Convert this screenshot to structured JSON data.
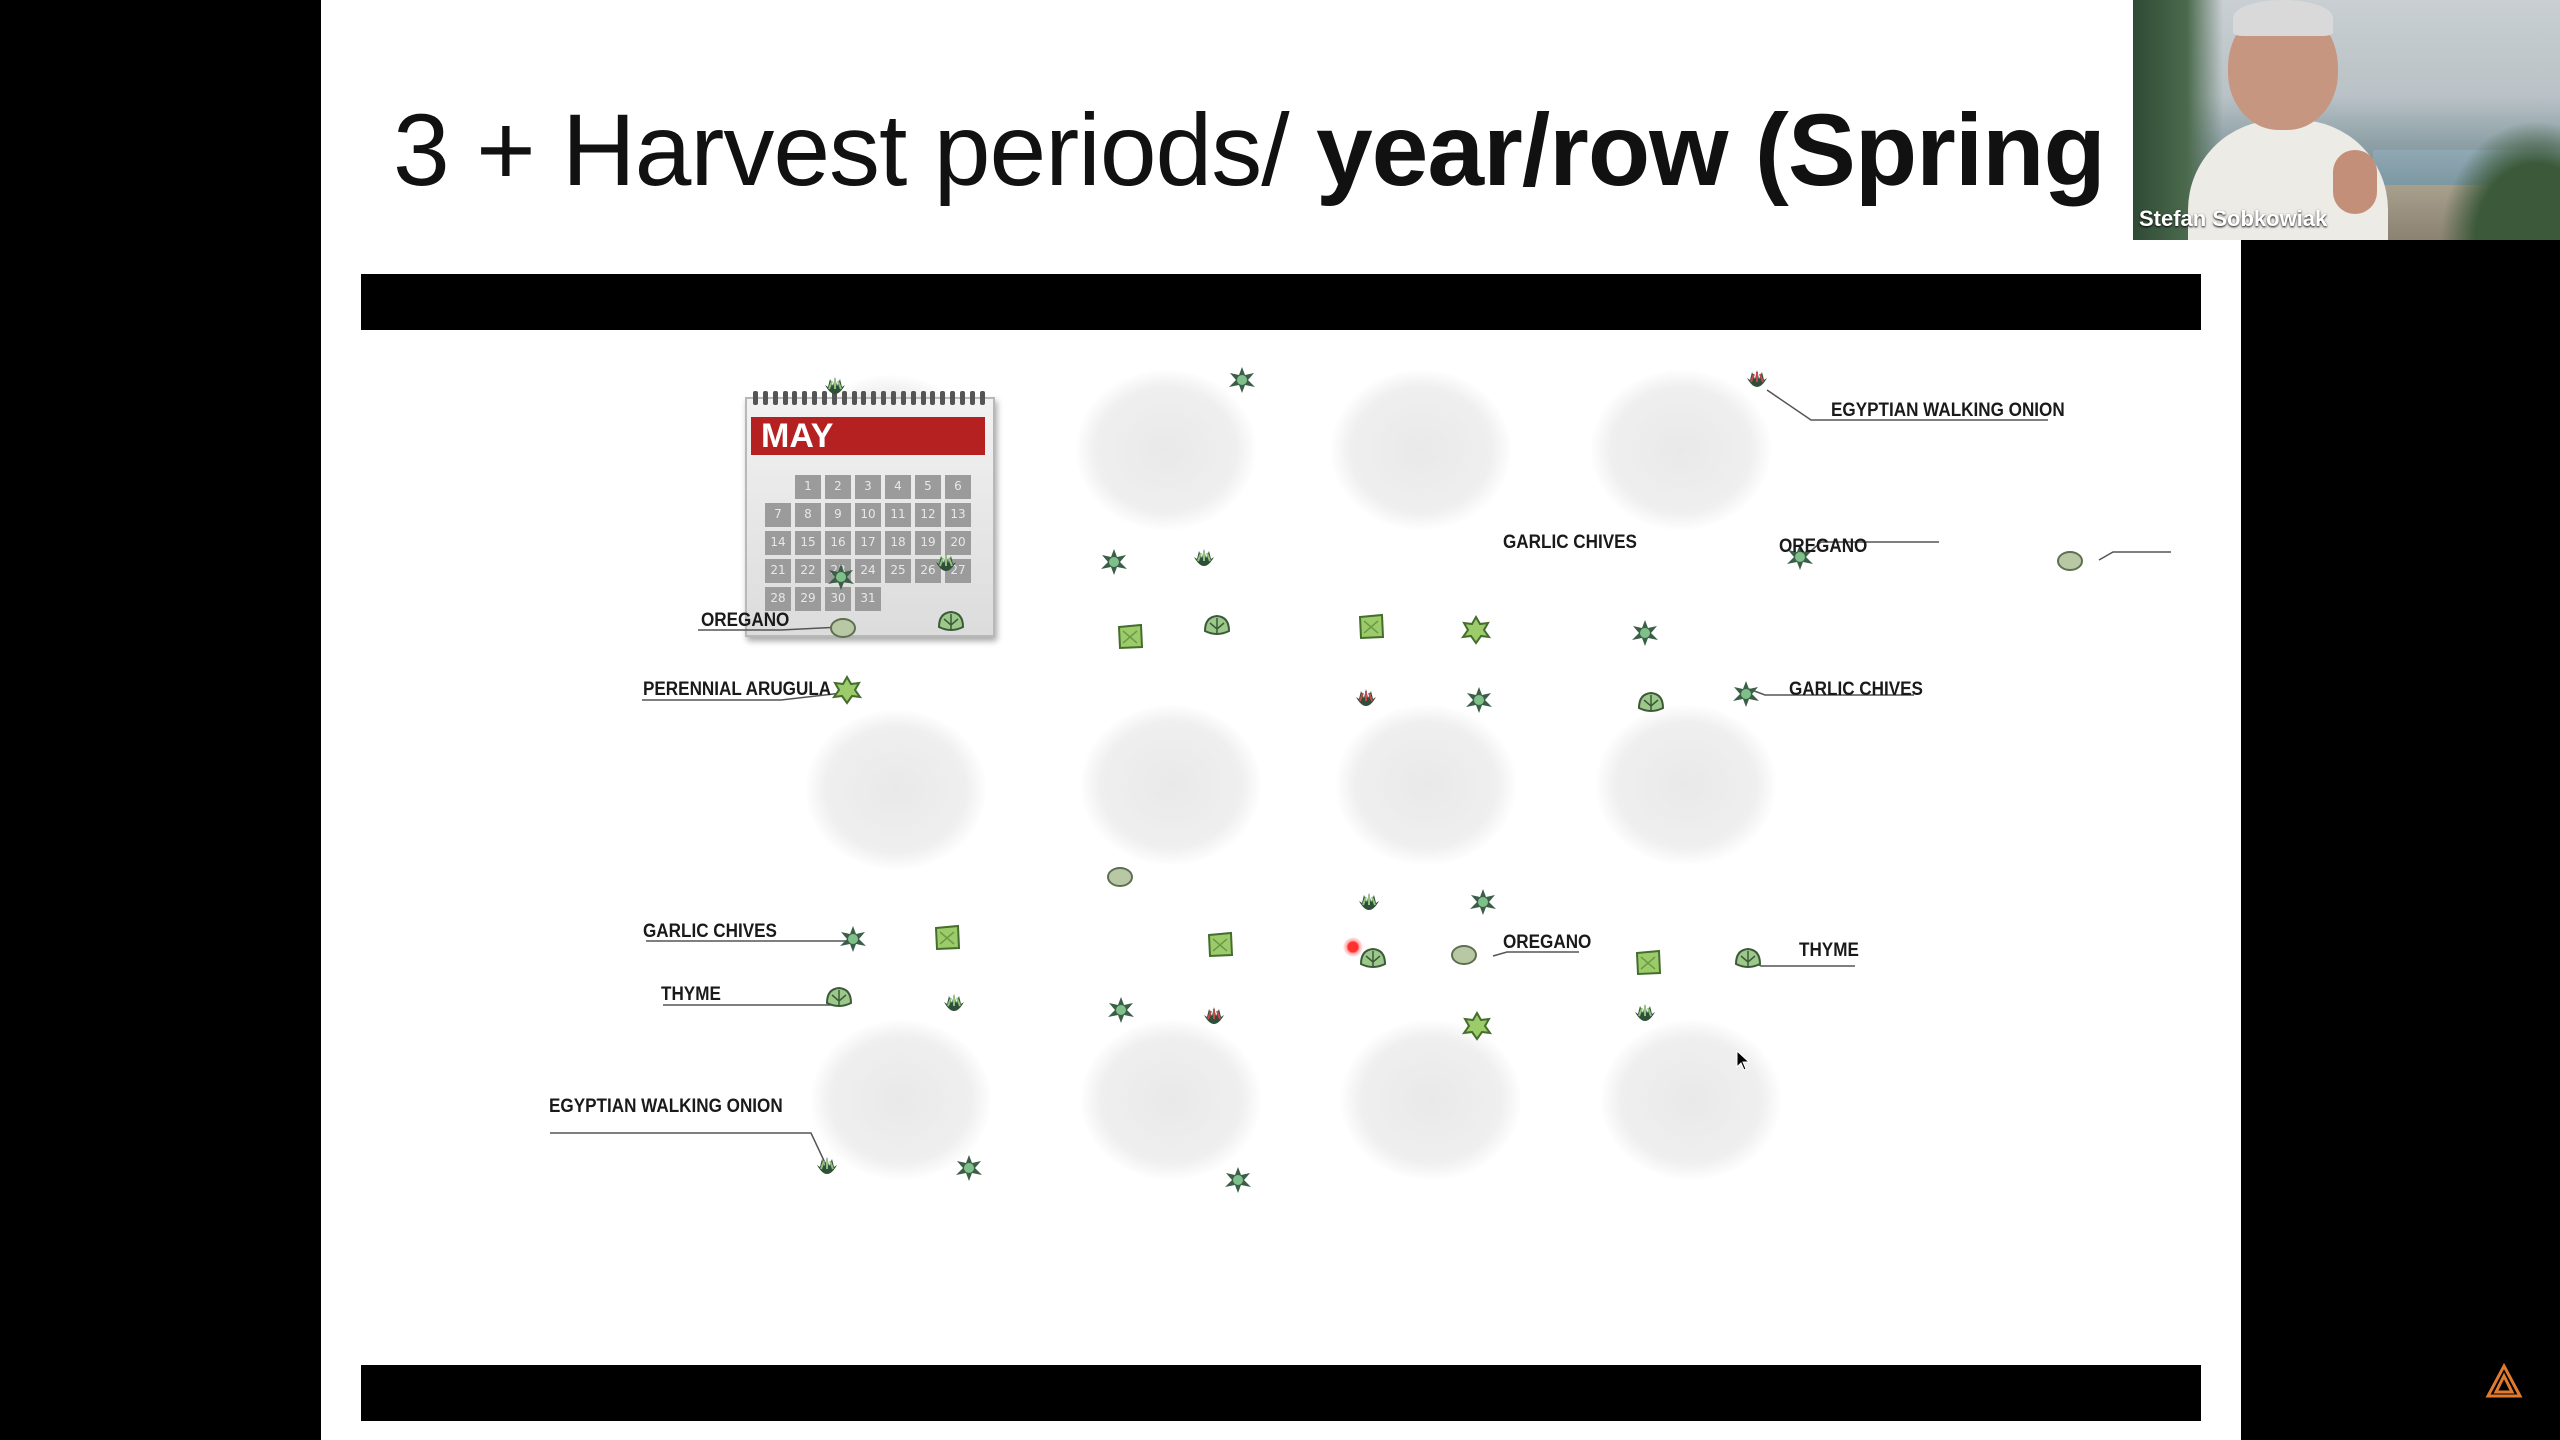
{
  "slide": {
    "title_regular": "3 + Harvest periods/ ",
    "title_bold": "year/row (Spring"
  },
  "calendar": {
    "month": "MAY",
    "days": [
      "1",
      "2",
      "3",
      "4",
      "5",
      "6",
      "7",
      "8",
      "9",
      "10",
      "11",
      "12",
      "13",
      "14",
      "15",
      "16",
      "17",
      "18",
      "19",
      "20",
      "21",
      "22",
      "23",
      "24",
      "25",
      "26",
      "27",
      "28",
      "29",
      "30",
      "31"
    ]
  },
  "plant_labels": {
    "egyptian_walking_onion_top": "EGYPTIAN WALKING ONION",
    "garlic_chives_top": "GARLIC CHIVES",
    "oregano_top_right": "OREGANO",
    "oregano_left": "OREGANO",
    "perennial_arugula": "PERENNIAL ARUGULA",
    "garlic_chives_right": "GARLIC CHIVES",
    "garlic_chives_left": "GARLIC CHIVES",
    "thyme_left": "THYME",
    "oregano_middle": "OREGANO",
    "thyme_right": "THYME",
    "egyptian_walking_onion_bottom": "EGYPTIAN WALKING ONION"
  },
  "webcam": {
    "participant_name": "Stefan Sobkowiak"
  },
  "colors": {
    "calendar_header": "#b52121",
    "plant_green": "#7fae5a",
    "plant_dark": "#2f4f3a"
  },
  "icons": {
    "cursor": "arrow-cursor-icon",
    "app_logo": "conference-logo-icon"
  }
}
